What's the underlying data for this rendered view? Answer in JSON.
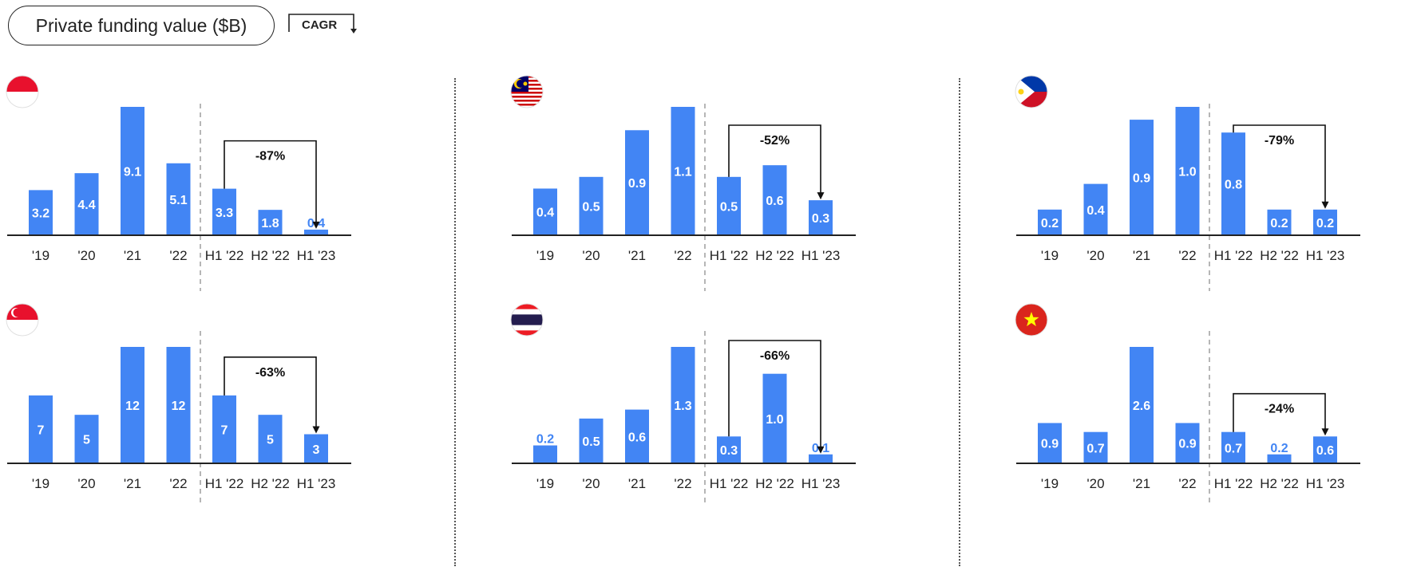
{
  "legend": {
    "title": "Private funding value ($B)",
    "cagr_label": "CAGR"
  },
  "colors": {
    "bar": "#4285f4",
    "axis": "#222222",
    "separator": "#555555"
  },
  "chart_data": [
    {
      "type": "bar",
      "flag_icon": "indonesia-flag-icon",
      "categories": [
        "'19",
        "'20",
        "'21",
        "'22",
        "H1 '22",
        "H2 '22",
        "H1 '23"
      ],
      "values": [
        3.2,
        4.4,
        9.1,
        5.1,
        3.3,
        1.8,
        0.4
      ],
      "value_labels": [
        "3.2",
        "4.4",
        "9.1",
        "5.1",
        "3.3",
        "1.8",
        "0.4"
      ],
      "ylim": [
        0,
        9.1
      ],
      "cagr": "-87%"
    },
    {
      "type": "bar",
      "flag_icon": "malaysia-flag-icon",
      "categories": [
        "'19",
        "'20",
        "'21",
        "'22",
        "H1 '22",
        "H2 '22",
        "H1 '23"
      ],
      "values": [
        0.4,
        0.5,
        0.9,
        1.1,
        0.5,
        0.6,
        0.3
      ],
      "value_labels": [
        "0.4",
        "0.5",
        "0.9",
        "1.1",
        "0.5",
        "0.6",
        "0.3"
      ],
      "ylim": [
        0,
        1.1
      ],
      "cagr": "-52%"
    },
    {
      "type": "bar",
      "flag_icon": "philippines-flag-icon",
      "categories": [
        "'19",
        "'20",
        "'21",
        "'22",
        "H1 '22",
        "H2 '22",
        "H1 '23"
      ],
      "values": [
        0.2,
        0.4,
        0.9,
        1.0,
        0.8,
        0.2,
        0.2
      ],
      "value_labels": [
        "0.2",
        "0.4",
        "0.9",
        "1.0",
        "0.8",
        "0.2",
        "0.2"
      ],
      "ylim": [
        0,
        1.0
      ],
      "cagr": "-79%"
    },
    {
      "type": "bar",
      "flag_icon": "singapore-flag-icon",
      "categories": [
        "'19",
        "'20",
        "'21",
        "'22",
        "H1 '22",
        "H2 '22",
        "H1 '23"
      ],
      "values": [
        7,
        5,
        12,
        12,
        7,
        5,
        3
      ],
      "value_labels": [
        "7",
        "5",
        "12",
        "12",
        "7",
        "5",
        "3"
      ],
      "ylim": [
        0,
        12
      ],
      "cagr": "-63%"
    },
    {
      "type": "bar",
      "flag_icon": "thailand-flag-icon",
      "categories": [
        "'19",
        "'20",
        "'21",
        "'22",
        "H1 '22",
        "H2 '22",
        "H1 '23"
      ],
      "values": [
        0.2,
        0.5,
        0.6,
        1.3,
        0.3,
        1.0,
        0.1
      ],
      "value_labels": [
        "0.2",
        "0.5",
        "0.6",
        "1.3",
        "0.3",
        "1.0",
        "0.1"
      ],
      "ylim": [
        0,
        1.3
      ],
      "cagr": "-66%"
    },
    {
      "type": "bar",
      "flag_icon": "vietnam-flag-icon",
      "categories": [
        "'19",
        "'20",
        "'21",
        "'22",
        "H1 '22",
        "H2 '22",
        "H1 '23"
      ],
      "values": [
        0.9,
        0.7,
        2.6,
        0.9,
        0.7,
        0.2,
        0.6
      ],
      "value_labels": [
        "0.9",
        "0.7",
        "2.6",
        "0.9",
        "0.7",
        "0.2",
        "0.6"
      ],
      "ylim": [
        0,
        2.6
      ],
      "cagr": "-24%"
    }
  ]
}
